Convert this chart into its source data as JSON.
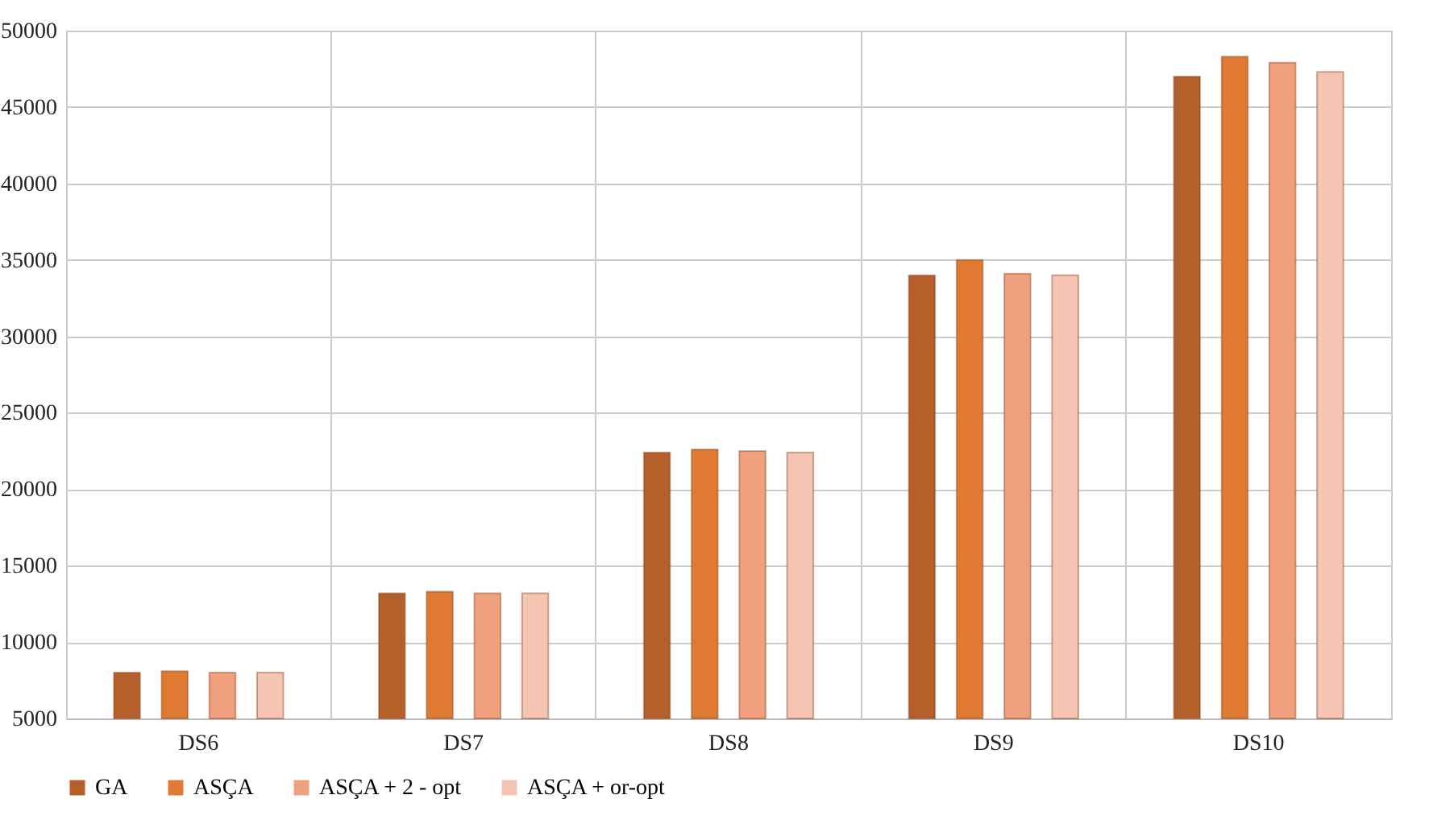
{
  "chart_data": {
    "type": "bar",
    "categories": [
      "DS6",
      "DS7",
      "DS8",
      "DS9",
      "DS10"
    ],
    "series": [
      {
        "name": "GA",
        "color": "#b5602a",
        "values": [
          8000,
          13200,
          22400,
          34000,
          47000
        ]
      },
      {
        "name": "ASÇA",
        "color": "#e07a32",
        "values": [
          8100,
          13300,
          22600,
          35000,
          48300
        ]
      },
      {
        "name": "ASÇA + 2 - opt",
        "color": "#f0a07c",
        "values": [
          8000,
          13200,
          22500,
          34100,
          47900
        ]
      },
      {
        "name": "ASÇA + or-opt",
        "color": "#f6c4b2",
        "values": [
          8000,
          13200,
          22400,
          34000,
          47300
        ]
      }
    ],
    "ylim": [
      5000,
      50000
    ],
    "yticks": [
      5000,
      10000,
      15000,
      20000,
      25000,
      30000,
      35000,
      40000,
      45000,
      50000
    ],
    "grid": true,
    "legend": "bottom"
  }
}
